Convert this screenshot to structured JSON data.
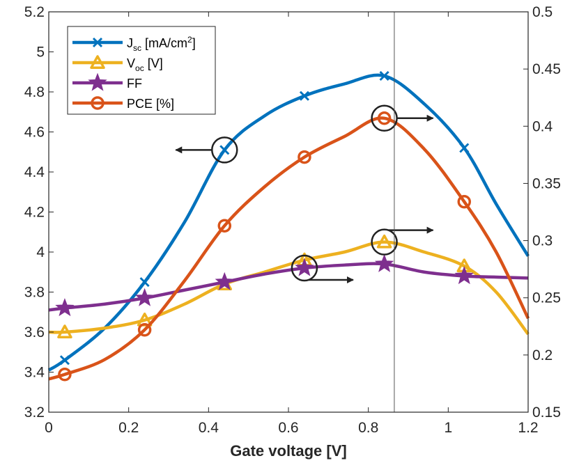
{
  "chart_data": {
    "type": "line",
    "title": "",
    "xlabel": "Gate voltage [V]",
    "ylabel": "",
    "y2label": "",
    "xlim": [
      0,
      1.2
    ],
    "ylim": [
      3.2,
      5.2
    ],
    "y2lim": [
      0.15,
      0.5
    ],
    "x_ticks": [
      "0",
      "0.2",
      "0.4",
      "0.6",
      "0.8",
      "1",
      "1.2"
    ],
    "y_ticks": [
      "3.2",
      "3.4",
      "3.6",
      "3.8",
      "4",
      "4.2",
      "4.4",
      "4.6",
      "4.8",
      "5",
      "5.2"
    ],
    "y2_ticks": [
      "0.15",
      "0.2",
      "0.25",
      "0.3",
      "0.35",
      "0.4",
      "0.45",
      "0.5"
    ],
    "grid": false,
    "legend_position": "top-left",
    "vertical_line_x": 0.865,
    "series": [
      {
        "name": "J_sc [mA/cm^2]",
        "legend_main": "J",
        "legend_sub": "sc",
        "legend_rest": " [mA/cm",
        "legend_sup": "2",
        "legend_end": "]",
        "axis": "left",
        "color": "#0072BD",
        "marker": "x",
        "x": [
          0.04,
          0.24,
          0.44,
          0.64,
          0.84,
          1.04
        ],
        "values": [
          3.46,
          3.85,
          4.51,
          4.78,
          4.88,
          4.52
        ],
        "curve": [
          [
            0.0,
            3.41
          ],
          [
            0.04,
            3.46
          ],
          [
            0.14,
            3.62
          ],
          [
            0.24,
            3.85
          ],
          [
            0.34,
            4.15
          ],
          [
            0.44,
            4.51
          ],
          [
            0.54,
            4.68
          ],
          [
            0.64,
            4.78
          ],
          [
            0.74,
            4.84
          ],
          [
            0.84,
            4.88
          ],
          [
            0.94,
            4.74
          ],
          [
            1.04,
            4.52
          ],
          [
            1.12,
            4.24
          ],
          [
            1.2,
            3.98
          ]
        ]
      },
      {
        "name": "V_oc [V]",
        "legend_main": "V",
        "legend_sub": "oc",
        "legend_rest": " [V]",
        "legend_sup": "",
        "legend_end": "",
        "axis": "left",
        "color": "#EDB120",
        "marker": "triangle",
        "x": [
          0.04,
          0.24,
          0.44,
          0.64,
          0.84,
          1.04
        ],
        "values": [
          3.6,
          3.66,
          3.84,
          3.96,
          4.05,
          3.93
        ],
        "curve": [
          [
            0.0,
            3.6
          ],
          [
            0.04,
            3.6
          ],
          [
            0.14,
            3.62
          ],
          [
            0.24,
            3.66
          ],
          [
            0.34,
            3.74
          ],
          [
            0.44,
            3.84
          ],
          [
            0.54,
            3.9
          ],
          [
            0.64,
            3.96
          ],
          [
            0.74,
            4.0
          ],
          [
            0.84,
            4.05
          ],
          [
            0.94,
            4.0
          ],
          [
            1.04,
            3.93
          ],
          [
            1.12,
            3.8
          ],
          [
            1.2,
            3.59
          ]
        ]
      },
      {
        "name": "FF",
        "legend_main": "FF",
        "legend_sub": "",
        "legend_rest": "",
        "legend_sup": "",
        "legend_end": "",
        "axis": "left",
        "color": "#7E2F8E",
        "marker": "star",
        "x": [
          0.04,
          0.24,
          0.44,
          0.64,
          0.84,
          1.04
        ],
        "values": [
          3.72,
          3.77,
          3.85,
          3.92,
          3.94,
          3.88
        ],
        "curve": [
          [
            0.0,
            3.71
          ],
          [
            0.04,
            3.72
          ],
          [
            0.14,
            3.74
          ],
          [
            0.24,
            3.77
          ],
          [
            0.34,
            3.81
          ],
          [
            0.44,
            3.85
          ],
          [
            0.54,
            3.89
          ],
          [
            0.64,
            3.92
          ],
          [
            0.74,
            3.935
          ],
          [
            0.84,
            3.94
          ],
          [
            0.94,
            3.9
          ],
          [
            1.04,
            3.88
          ],
          [
            1.12,
            3.875
          ],
          [
            1.2,
            3.87
          ]
        ]
      },
      {
        "name": "PCE [%]",
        "legend_main": "PCE [%]",
        "legend_sub": "",
        "legend_rest": "",
        "legend_sup": "",
        "legend_end": "",
        "axis": "right",
        "color": "#D95319",
        "marker": "circle",
        "x": [
          0.04,
          0.24,
          0.44,
          0.64,
          0.84,
          1.04
        ],
        "values": [
          0.183,
          0.222,
          0.313,
          0.373,
          0.407,
          0.334
        ],
        "curve": [
          [
            0.0,
            0.179
          ],
          [
            0.04,
            0.183
          ],
          [
            0.14,
            0.196
          ],
          [
            0.24,
            0.222
          ],
          [
            0.34,
            0.265
          ],
          [
            0.44,
            0.313
          ],
          [
            0.54,
            0.347
          ],
          [
            0.64,
            0.373
          ],
          [
            0.74,
            0.391
          ],
          [
            0.84,
            0.407
          ],
          [
            0.94,
            0.38
          ],
          [
            1.04,
            0.334
          ],
          [
            1.12,
            0.29
          ],
          [
            1.2,
            0.232
          ]
        ]
      }
    ],
    "annotations": [
      {
        "series": "J_sc [mA/cm^2]",
        "axis": "left",
        "x": 0.44,
        "y": 4.51,
        "arrow": "left"
      },
      {
        "series": "PCE [%]",
        "axis": "right",
        "x": 0.84,
        "y": 0.407,
        "arrow": "right"
      },
      {
        "series": "V_oc [V]",
        "axis": "left",
        "x": 0.84,
        "y": 4.05,
        "arrow": "right-up"
      },
      {
        "series": "FF",
        "axis": "left",
        "x": 0.64,
        "y": 3.92,
        "arrow": "right-down"
      }
    ]
  }
}
